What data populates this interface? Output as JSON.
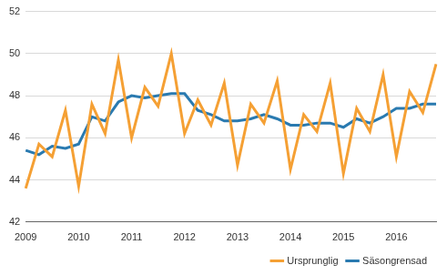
{
  "chart_data": {
    "type": "line",
    "categories": [
      "2009",
      null,
      null,
      null,
      "2010",
      null,
      null,
      null,
      "2011",
      null,
      null,
      null,
      "2012",
      null,
      null,
      null,
      "2013",
      null,
      null,
      null,
      "2014",
      null,
      null,
      null,
      "2015",
      null,
      null,
      null,
      "2016",
      null,
      null,
      null
    ],
    "series": [
      {
        "name": "Ursprunglig",
        "color": "#f5a034",
        "values": [
          43.6,
          45.7,
          45.1,
          47.3,
          43.7,
          47.6,
          46.2,
          49.7,
          46.0,
          48.4,
          47.5,
          50.0,
          46.2,
          47.8,
          46.6,
          48.6,
          44.7,
          47.6,
          46.7,
          48.7,
          44.5,
          47.1,
          46.3,
          48.6,
          44.3,
          47.4,
          46.3,
          49.0,
          45.1,
          48.2,
          47.2,
          49.5
        ]
      },
      {
        "name": "Säsongrensad",
        "color": "#2a7ab0",
        "values": [
          45.4,
          45.2,
          45.6,
          45.5,
          45.7,
          47.0,
          46.8,
          47.7,
          48.0,
          47.9,
          48.0,
          48.1,
          48.1,
          47.3,
          47.1,
          46.8,
          46.8,
          46.9,
          47.1,
          46.9,
          46.6,
          46.6,
          46.7,
          46.7,
          46.5,
          46.9,
          46.7,
          47.0,
          47.4,
          47.4,
          47.6,
          47.6
        ]
      }
    ],
    "ylim": [
      42,
      52
    ],
    "yticks": [
      42,
      44,
      46,
      48,
      50,
      52
    ],
    "grid": true,
    "legend": "lower right"
  }
}
